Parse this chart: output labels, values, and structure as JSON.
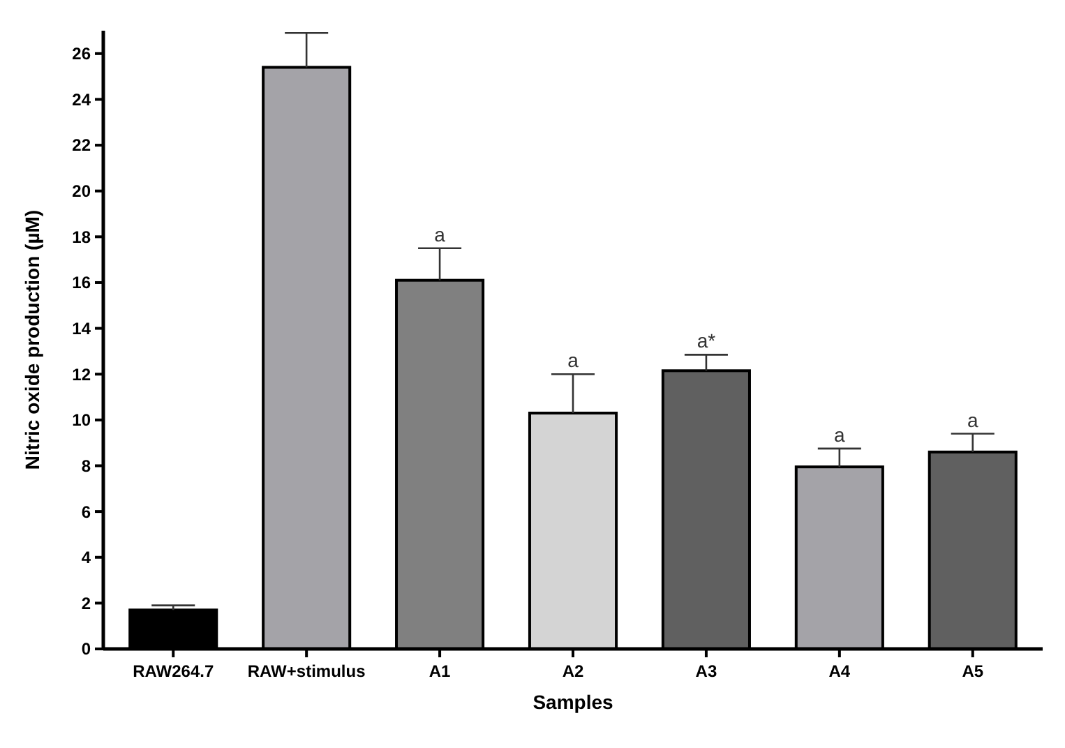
{
  "chart_data": {
    "type": "bar",
    "xlabel": "Samples",
    "ylabel": "Nitric oxide production (µM)",
    "categories": [
      "RAW264.7",
      "RAW+stimulus",
      "A1",
      "A2",
      "A3",
      "A4",
      "A5"
    ],
    "values": [
      1.7,
      25.4,
      16.1,
      10.3,
      12.15,
      7.95,
      8.6
    ],
    "colors": [
      "#000000",
      "#a4a3a8",
      "#808080",
      "#d4d4d4",
      "#606060",
      "#a4a3a8",
      "#606060"
    ],
    "errors": [
      [
        1.7,
        1.9
      ],
      [
        25.4,
        26.9
      ],
      [
        16.1,
        17.5
      ],
      [
        10.3,
        12
      ],
      [
        12.15,
        12.85
      ],
      [
        7.95,
        8.75
      ],
      [
        8.6,
        9.4
      ]
    ],
    "value_labels": [
      null,
      null,
      "a",
      "a",
      "a*",
      "a",
      "a"
    ],
    "ylim": [
      0,
      27
    ],
    "yticks": [
      0,
      2,
      4,
      6,
      8,
      10,
      12,
      14,
      16,
      18,
      20,
      22,
      24,
      26
    ]
  }
}
